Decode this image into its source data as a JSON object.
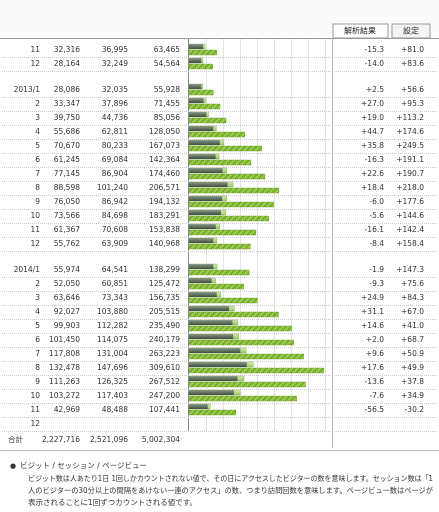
{
  "tabs": [
    "解析結果",
    "設定"
  ],
  "rows": [
    {
      "period": "11",
      "visits": {
        "value": 32316,
        "label": "32,316"
      },
      "sessions": {
        "value": 36995,
        "label": "36,995"
      },
      "pageviews": {
        "value": 63465,
        "label": "63,465"
      },
      "change_prev": "-15.3",
      "change_year": "+81.0"
    },
    {
      "period": "12",
      "visits": {
        "value": 28164,
        "label": "28,164"
      },
      "sessions": {
        "value": 32249,
        "label": "32,249"
      },
      "pageviews": {
        "value": 54564,
        "label": "54,564"
      },
      "change_prev": "-14.0",
      "change_year": "+83.6"
    },
    {
      "period": "2013/1",
      "visits": {
        "value": 28086,
        "label": "28,086"
      },
      "sessions": {
        "value": 32035,
        "label": "32,035"
      },
      "pageviews": {
        "value": 55928,
        "label": "55,928"
      },
      "change_prev": "+2.5",
      "change_year": "+56.6"
    },
    {
      "period": "2",
      "visits": {
        "value": 33347,
        "label": "33,347"
      },
      "sessions": {
        "value": 37896,
        "label": "37,896"
      },
      "pageviews": {
        "value": 71455,
        "label": "71,455"
      },
      "change_prev": "+27.0",
      "change_year": "+95.3"
    },
    {
      "period": "3",
      "visits": {
        "value": 39750,
        "label": "39,750"
      },
      "sessions": {
        "value": 44736,
        "label": "44,736"
      },
      "pageviews": {
        "value": 85056,
        "label": "85,056"
      },
      "change_prev": "+19.0",
      "change_year": "+113.2"
    },
    {
      "period": "4",
      "visits": {
        "value": 55686,
        "label": "55,686"
      },
      "sessions": {
        "value": 62811,
        "label": "62,811"
      },
      "pageviews": {
        "value": 128050,
        "label": "128,050"
      },
      "change_prev": "+44.7",
      "change_year": "+174.6"
    },
    {
      "period": "5",
      "visits": {
        "value": 70670,
        "label": "70,670"
      },
      "sessions": {
        "value": 80233,
        "label": "80,233"
      },
      "pageviews": {
        "value": 167073,
        "label": "167,073"
      },
      "change_prev": "+35.8",
      "change_year": "+249.5"
    },
    {
      "period": "6",
      "visits": {
        "value": 61245,
        "label": "61,245"
      },
      "sessions": {
        "value": 69084,
        "label": "69,084"
      },
      "pageviews": {
        "value": 142364,
        "label": "142,364"
      },
      "change_prev": "-16.3",
      "change_year": "+191.1"
    },
    {
      "period": "7",
      "visits": {
        "value": 77145,
        "label": "77,145"
      },
      "sessions": {
        "value": 86904,
        "label": "86,904"
      },
      "pageviews": {
        "value": 174460,
        "label": "174,460"
      },
      "change_prev": "+22.6",
      "change_year": "+190.7"
    },
    {
      "period": "8",
      "visits": {
        "value": 88598,
        "label": "88,598"
      },
      "sessions": {
        "value": 101240,
        "label": "101,240"
      },
      "pageviews": {
        "value": 206571,
        "label": "206,571"
      },
      "change_prev": "+18.4",
      "change_year": "+218.0"
    },
    {
      "period": "9",
      "visits": {
        "value": 76050,
        "label": "76,050"
      },
      "sessions": {
        "value": 86942,
        "label": "86,942"
      },
      "pageviews": {
        "value": 194132,
        "label": "194,132"
      },
      "change_prev": "-6.0",
      "change_year": "+177.6"
    },
    {
      "period": "10",
      "visits": {
        "value": 73566,
        "label": "73,566"
      },
      "sessions": {
        "value": 84698,
        "label": "84,698"
      },
      "pageviews": {
        "value": 183291,
        "label": "183,291"
      },
      "change_prev": "-5.6",
      "change_year": "+144.6"
    },
    {
      "period": "11",
      "visits": {
        "value": 61367,
        "label": "61,367"
      },
      "sessions": {
        "value": 70608,
        "label": "70,608"
      },
      "pageviews": {
        "value": 153838,
        "label": "153,838"
      },
      "change_prev": "-16.1",
      "change_year": "+142.4"
    },
    {
      "period": "12",
      "visits": {
        "value": 55762,
        "label": "55,762"
      },
      "sessions": {
        "value": 63909,
        "label": "63,909"
      },
      "pageviews": {
        "value": 140968,
        "label": "140,968"
      },
      "change_prev": "-8.4",
      "change_year": "+158.4"
    },
    {
      "period": "2014/1",
      "visits": {
        "value": 55974,
        "label": "55,974"
      },
      "sessions": {
        "value": 64541,
        "label": "64,541"
      },
      "pageviews": {
        "value": 138299,
        "label": "138,299"
      },
      "change_prev": "-1.9",
      "change_year": "+147.3"
    },
    {
      "period": "2",
      "visits": {
        "value": 52050,
        "label": "52,050"
      },
      "sessions": {
        "value": 60851,
        "label": "60,851"
      },
      "pageviews": {
        "value": 125472,
        "label": "125,472"
      },
      "change_prev": "-9.3",
      "change_year": "+75.6"
    },
    {
      "period": "3",
      "visits": {
        "value": 63646,
        "label": "63,646"
      },
      "sessions": {
        "value": 73343,
        "label": "73,343"
      },
      "pageviews": {
        "value": 156735,
        "label": "156,735"
      },
      "change_prev": "+24.9",
      "change_year": "+84.3"
    },
    {
      "period": "4",
      "visits": {
        "value": 92027,
        "label": "92,027"
      },
      "sessions": {
        "value": 103880,
        "label": "103,880"
      },
      "pageviews": {
        "value": 205515,
        "label": "205,515"
      },
      "change_prev": "+31.1",
      "change_year": "+67.0"
    },
    {
      "period": "5",
      "visits": {
        "value": 99903,
        "label": "99,903"
      },
      "sessions": {
        "value": 112282,
        "label": "112,282"
      },
      "pageviews": {
        "value": 235490,
        "label": "235,490"
      },
      "change_prev": "+14.6",
      "change_year": "+41.0"
    },
    {
      "period": "6",
      "visits": {
        "value": 101450,
        "label": "101,450"
      },
      "sessions": {
        "value": 114075,
        "label": "114,075"
      },
      "pageviews": {
        "value": 240179,
        "label": "240,179"
      },
      "change_prev": "+2.0",
      "change_year": "+68.7"
    },
    {
      "period": "7",
      "visits": {
        "value": 117808,
        "label": "117,808"
      },
      "sessions": {
        "value": 131004,
        "label": "131,004"
      },
      "pageviews": {
        "value": 263223,
        "label": "263,223"
      },
      "change_prev": "+9.6",
      "change_year": "+50.9"
    },
    {
      "period": "8",
      "visits": {
        "value": 132478,
        "label": "132,478"
      },
      "sessions": {
        "value": 147696,
        "label": "147,696"
      },
      "pageviews": {
        "value": 309610,
        "label": "309,610"
      },
      "change_prev": "+17.6",
      "change_year": "+49.9"
    },
    {
      "period": "9",
      "visits": {
        "value": 111263,
        "label": "111,263"
      },
      "sessions": {
        "value": 126325,
        "label": "126,325"
      },
      "pageviews": {
        "value": 267512,
        "label": "267,512"
      },
      "change_prev": "-13.6",
      "change_year": "+37.8"
    },
    {
      "period": "10",
      "visits": {
        "value": 103272,
        "label": "103,272"
      },
      "sessions": {
        "value": 117403,
        "label": "117,403"
      },
      "pageviews": {
        "value": 247200,
        "label": "247,200"
      },
      "change_prev": "-7.6",
      "change_year": "+34.9"
    },
    {
      "period": "11",
      "visits": {
        "value": 42969,
        "label": "42,969"
      },
      "sessions": {
        "value": 48488,
        "label": "48,488"
      },
      "pageviews": {
        "value": 107441,
        "label": "107,441"
      },
      "change_prev": "-56.5",
      "change_year": "-30.2"
    },
    {
      "period": "12"
    }
  ],
  "total": {
    "label": "合計",
    "visits": {
      "value": 2227716,
      "label": "2,227,716"
    },
    "sessions": {
      "value": 2521096,
      "label": "2,521,096"
    },
    "pageviews": {
      "value": 5002304,
      "label": "5,002,304"
    }
  },
  "note": {
    "title": "ビジット / セッション / ページビュー",
    "lines": [
      "ビジット数は人あたり1日 1回しかカウントされない値で、その日にアクセスしたビジターの数を意味します。セッション数は「1",
      "人のビジターの30分以上の間隔をあけない一連のアクセス」の数、つまり訪問回数を意味します。ページビュー数はページが",
      "表示されることに1回ずつカウントされる値です。"
    ]
  }
}
